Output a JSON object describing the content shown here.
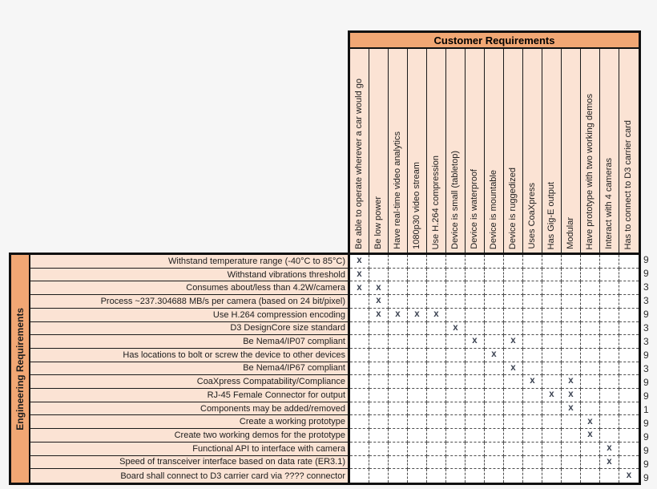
{
  "header": {
    "title": "Customer Requirements"
  },
  "left_panel": {
    "title": "Engineering Requirements"
  },
  "mark_symbol": "x",
  "colors": {
    "banner": "#F1A774",
    "panel": "#FBE3D4",
    "border": "#111111",
    "mark": "#3A4150",
    "grid_line": "#4D4D4D",
    "background": "#F6F6F6"
  },
  "columns": [
    "Be able to operate wherever a car would go",
    "Be low power",
    "Have real-time video analytics",
    "1080p30 video stream",
    "Use H.264 compression",
    "Device is small (tabletop)",
    "Device is waterproof",
    "Device is mountable",
    "Device is ruggedized",
    "Uses CoaXpress",
    "Has Gig-E output",
    "Modular",
    "Have prototype with two working demos",
    "Interact with 4 cameras",
    "Has to connect to D3 carrier card"
  ],
  "rows": [
    {
      "label": "Withstand temperature range (-40°C to 85°C)",
      "marks": [
        1
      ],
      "importance": 9
    },
    {
      "label": "Withstand vibrations threshold",
      "marks": [
        1
      ],
      "importance": 9
    },
    {
      "label": "Consumes about/less than 4.2W/camera",
      "marks": [
        1,
        2
      ],
      "importance": 3
    },
    {
      "label": "Process ~237.304688 MB/s per camera (based on 24 bit/pixel)",
      "marks": [
        2
      ],
      "importance": 3
    },
    {
      "label": "Use H.264 compression encoding",
      "marks": [
        2,
        3,
        4,
        5
      ],
      "importance": 9
    },
    {
      "label": "D3 DesignCore size standard",
      "marks": [
        6
      ],
      "importance": 3
    },
    {
      "label": "Be Nema4/IP07 compliant",
      "marks": [
        7,
        9
      ],
      "importance": 3
    },
    {
      "label": "Has locations to bolt or screw the device to other devices",
      "marks": [
        8
      ],
      "importance": 9
    },
    {
      "label": "Be Nema4/IP67 compliant",
      "marks": [
        9
      ],
      "importance": 3
    },
    {
      "label": "CoaXpress Compatability/Compliance",
      "marks": [
        10,
        12
      ],
      "importance": 9
    },
    {
      "label": "RJ-45 Female Connector for output",
      "marks": [
        11,
        12
      ],
      "importance": 9
    },
    {
      "label": "Components may be added/removed",
      "marks": [
        12
      ],
      "importance": 1
    },
    {
      "label": "Create a working prototype",
      "marks": [
        13
      ],
      "importance": 9
    },
    {
      "label": "Create two working demos for the prototype",
      "marks": [
        13
      ],
      "importance": 9
    },
    {
      "label": "Functional API to interface with camera",
      "marks": [
        14
      ],
      "importance": 9
    },
    {
      "label": "Speed of transceiver interface based on data rate (ER3.1)",
      "marks": [
        14
      ],
      "importance": 9
    },
    {
      "label": "Board shall connect to D3 carrier card via ???? connector",
      "marks": [
        15
      ],
      "importance": 9
    }
  ]
}
